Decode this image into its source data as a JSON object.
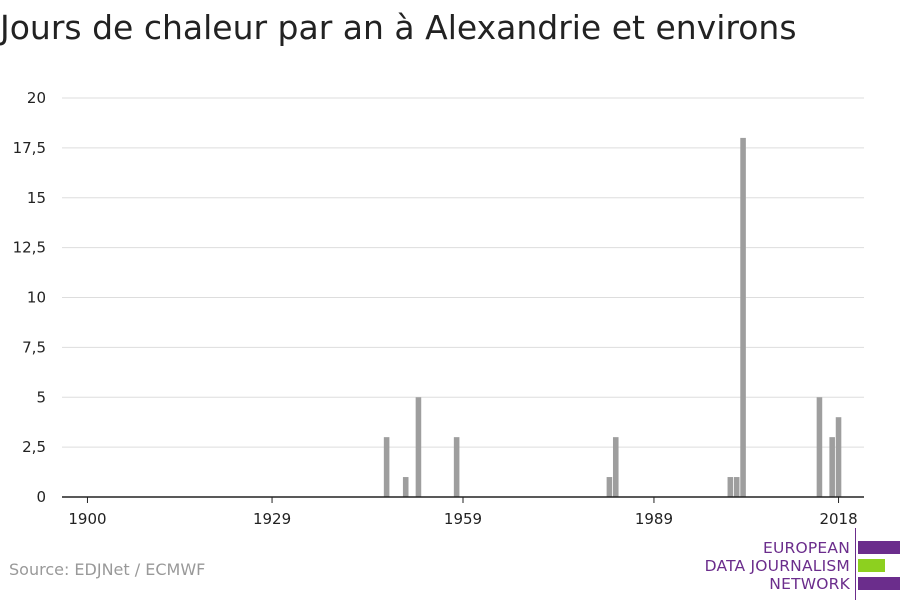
{
  "title": "Jours de chaleur par an à Alexandrie et environs",
  "source": "Source: EDJNet / ECMWF",
  "logo": {
    "lines": [
      "EUROPEAN",
      "DATA JOURNALISM",
      "NETWORK"
    ],
    "colors": {
      "primary": "#6b2d8c",
      "accent": "#8dd01f"
    }
  },
  "colors": {
    "bar": "#9e9e9e",
    "grid": "#dddddd",
    "axis": "#222222"
  },
  "chart_data": {
    "type": "bar",
    "title": "Jours de chaleur par an à Alexandrie et environs",
    "xlabel": "",
    "ylabel": "",
    "xlim": [
      1896,
      2022
    ],
    "ylim": [
      0,
      20
    ],
    "grid": true,
    "x_ticks": [
      1900,
      1929,
      1959,
      1989,
      2018
    ],
    "x_tick_labels": [
      "1900",
      "1929",
      "1959",
      "1989",
      "2018"
    ],
    "y_ticks": [
      0,
      2.5,
      5,
      7.5,
      10,
      12.5,
      15,
      17.5,
      20
    ],
    "y_tick_labels": [
      "0",
      "2,5",
      "5",
      "7,5",
      "10",
      "12,5",
      "15",
      "17,5",
      "20"
    ],
    "x": [
      1947,
      1950,
      1952,
      1958,
      1982,
      1983,
      2001,
      2002,
      2003,
      2015,
      2017,
      2018
    ],
    "values": [
      3,
      1,
      5,
      3,
      1,
      3,
      1,
      1,
      18,
      5,
      3,
      4
    ]
  }
}
